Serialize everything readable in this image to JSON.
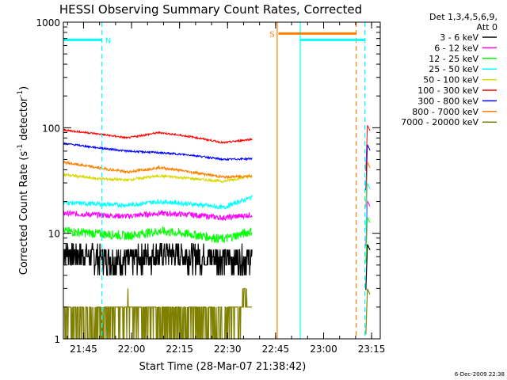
{
  "chart_data": {
    "type": "line",
    "title": "HESSI Observing Summary Count Rates, Corrected",
    "xlabel": "Start Time (28-Mar-07 21:38:42)",
    "ylabel_main": "Corrected Count Rate (s",
    "ylabel_exp1": "-1",
    "ylabel_mid": " detector",
    "ylabel_exp2": "-1",
    "ylabel_end": ")",
    "yscale": "log",
    "ylim": [
      1,
      1000
    ],
    "xlim_minutes": [
      0,
      99
    ],
    "x_tick_minutes": [
      6.3,
      21.3,
      36.3,
      51.3,
      66.3,
      81.3,
      96.3
    ],
    "x_tick_labels": [
      "21:45",
      "22:00",
      "22:15",
      "22:30",
      "22:45",
      "23:00",
      "23:15"
    ],
    "y_tick_values": [
      1,
      10,
      100,
      1000
    ],
    "y_tick_labels": [
      "1",
      "10",
      "100",
      "1000"
    ],
    "legend_header": [
      "Det 1,3,4,5,6,9,",
      "Att 0"
    ],
    "legend_placement": "top-right-outside",
    "series": [
      {
        "name": "3 - 6 keV",
        "color": "#000000",
        "points": [
          [
            0,
            6.8
          ],
          [
            10,
            6.0
          ],
          [
            20,
            5.5
          ],
          [
            30,
            6.5
          ],
          [
            40,
            6.2
          ],
          [
            50,
            5.8
          ],
          [
            59,
            5.8
          ]
        ],
        "noise": 0.3,
        "quantized": true
      },
      {
        "name": "6 - 12 keV",
        "color": "#ff00ff",
        "points": [
          [
            0,
            15.5
          ],
          [
            10,
            15.0
          ],
          [
            20,
            14.5
          ],
          [
            30,
            15.5
          ],
          [
            40,
            15.0
          ],
          [
            50,
            14.0
          ],
          [
            59,
            15.0
          ]
        ],
        "noise": 0.06
      },
      {
        "name": "12 - 25 keV",
        "color": "#00ff00",
        "points": [
          [
            0,
            10.5
          ],
          [
            10,
            10.0
          ],
          [
            20,
            9.5
          ],
          [
            30,
            10.5
          ],
          [
            40,
            9.8
          ],
          [
            50,
            8.8
          ],
          [
            59,
            10.5
          ]
        ],
        "noise": 0.1
      },
      {
        "name": "25 - 50 keV",
        "color": "#00ffff",
        "points": [
          [
            0,
            19.5
          ],
          [
            10,
            19.0
          ],
          [
            20,
            18.5
          ],
          [
            30,
            20.0
          ],
          [
            40,
            19.0
          ],
          [
            50,
            17.5
          ],
          [
            59,
            22.0
          ]
        ],
        "noise": 0.05
      },
      {
        "name": "50 - 100 keV",
        "color": "#d8d800",
        "points": [
          [
            0,
            36
          ],
          [
            10,
            33
          ],
          [
            20,
            32
          ],
          [
            30,
            35
          ],
          [
            40,
            33
          ],
          [
            50,
            31
          ],
          [
            59,
            35
          ]
        ],
        "noise": 0.03
      },
      {
        "name": "100 - 300 keV",
        "color": "#ff0000",
        "points": [
          [
            0,
            95
          ],
          [
            10,
            88
          ],
          [
            20,
            80
          ],
          [
            30,
            90
          ],
          [
            40,
            82
          ],
          [
            50,
            72
          ],
          [
            59,
            78
          ]
        ],
        "noise": 0.02
      },
      {
        "name": "300 - 800 keV",
        "color": "#0000ff",
        "points": [
          [
            0,
            71
          ],
          [
            10,
            65
          ],
          [
            20,
            60
          ],
          [
            30,
            58
          ],
          [
            40,
            55
          ],
          [
            50,
            50
          ],
          [
            59,
            51
          ]
        ],
        "noise": 0.02
      },
      {
        "name": "800 - 7000 keV",
        "color": "#ff8000",
        "points": [
          [
            0,
            47
          ],
          [
            10,
            42
          ],
          [
            20,
            38
          ],
          [
            30,
            42
          ],
          [
            40,
            38
          ],
          [
            50,
            34
          ],
          [
            59,
            35
          ]
        ],
        "noise": 0.03
      },
      {
        "name": "7000 - 20000 keV",
        "color": "#808000",
        "points": [
          [
            0,
            1.6
          ],
          [
            10,
            1.5
          ],
          [
            20,
            2.0
          ],
          [
            30,
            1.6
          ],
          [
            40,
            1.6
          ],
          [
            50,
            1.5
          ],
          [
            59,
            2.2
          ]
        ],
        "noise": 0.35,
        "quantized": true
      }
    ],
    "vertical_lines": [
      {
        "minute": 12.0,
        "color": "#00ffff",
        "style": "dashed"
      },
      {
        "minute": 66.8,
        "color": "#ff8000",
        "style": "solid"
      },
      {
        "minute": 74.0,
        "color": "#00ffff",
        "style": "solid"
      },
      {
        "minute": 91.5,
        "color": "#ff8000",
        "style": "dashed"
      },
      {
        "minute": 94.2,
        "color": "#00ffff",
        "style": "dashed"
      }
    ],
    "horizontal_bars": [
      {
        "label": "N",
        "color": "#00ffff",
        "x0": 0,
        "x1": 12.0,
        "y": 680
      },
      {
        "label": "S",
        "color": "#ff8000",
        "x0": 67.2,
        "x1": 91.5,
        "y": 780
      },
      {
        "label": "",
        "color": "#00ffff",
        "x0": 74.0,
        "x1": 94.2,
        "y": 680
      }
    ],
    "timestamp": "6-Dec-2009 22:38"
  }
}
